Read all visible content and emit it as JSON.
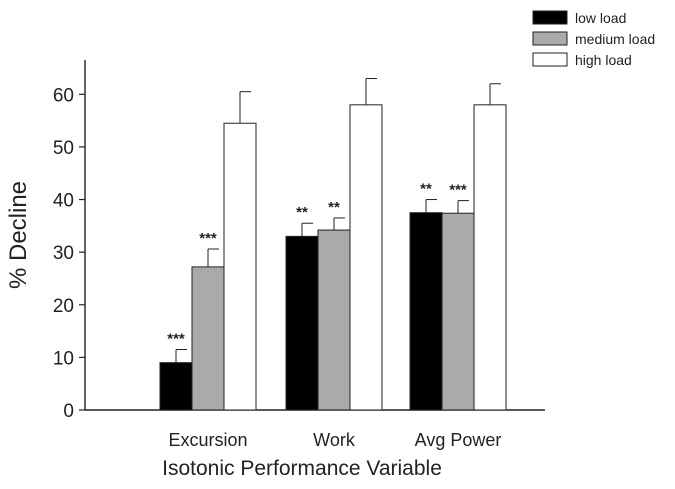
{
  "chart_data": {
    "type": "bar",
    "title": "",
    "xlabel": "Isotonic Performance Variable",
    "ylabel": "% Decline",
    "ylim": [
      0,
      65
    ],
    "yticks": [
      0,
      10,
      20,
      30,
      40,
      50,
      60
    ],
    "ytick_labels": [
      "0",
      "10",
      "20",
      "30",
      "40",
      "50",
      "60"
    ],
    "grid": false,
    "legend_position": "top-right",
    "categories": [
      "Excursion",
      "Work",
      "Avg Power"
    ],
    "series": [
      {
        "name": "low load",
        "color": "#000000",
        "values": [
          9,
          33,
          37.5
        ],
        "errors": [
          2.5,
          2.5,
          2.5
        ],
        "significance": [
          "***",
          "**",
          "**"
        ]
      },
      {
        "name": "medium load",
        "color": "#aaaaaa",
        "values": [
          27.2,
          34.2,
          37.4
        ],
        "errors": [
          3.4,
          2.3,
          2.4
        ],
        "significance": [
          "***",
          "**",
          "***"
        ]
      },
      {
        "name": "high load",
        "color": "#ffffff",
        "values": [
          54.5,
          58,
          58
        ],
        "errors": [
          6,
          5,
          4
        ],
        "significance": [
          "",
          "",
          ""
        ]
      }
    ]
  }
}
